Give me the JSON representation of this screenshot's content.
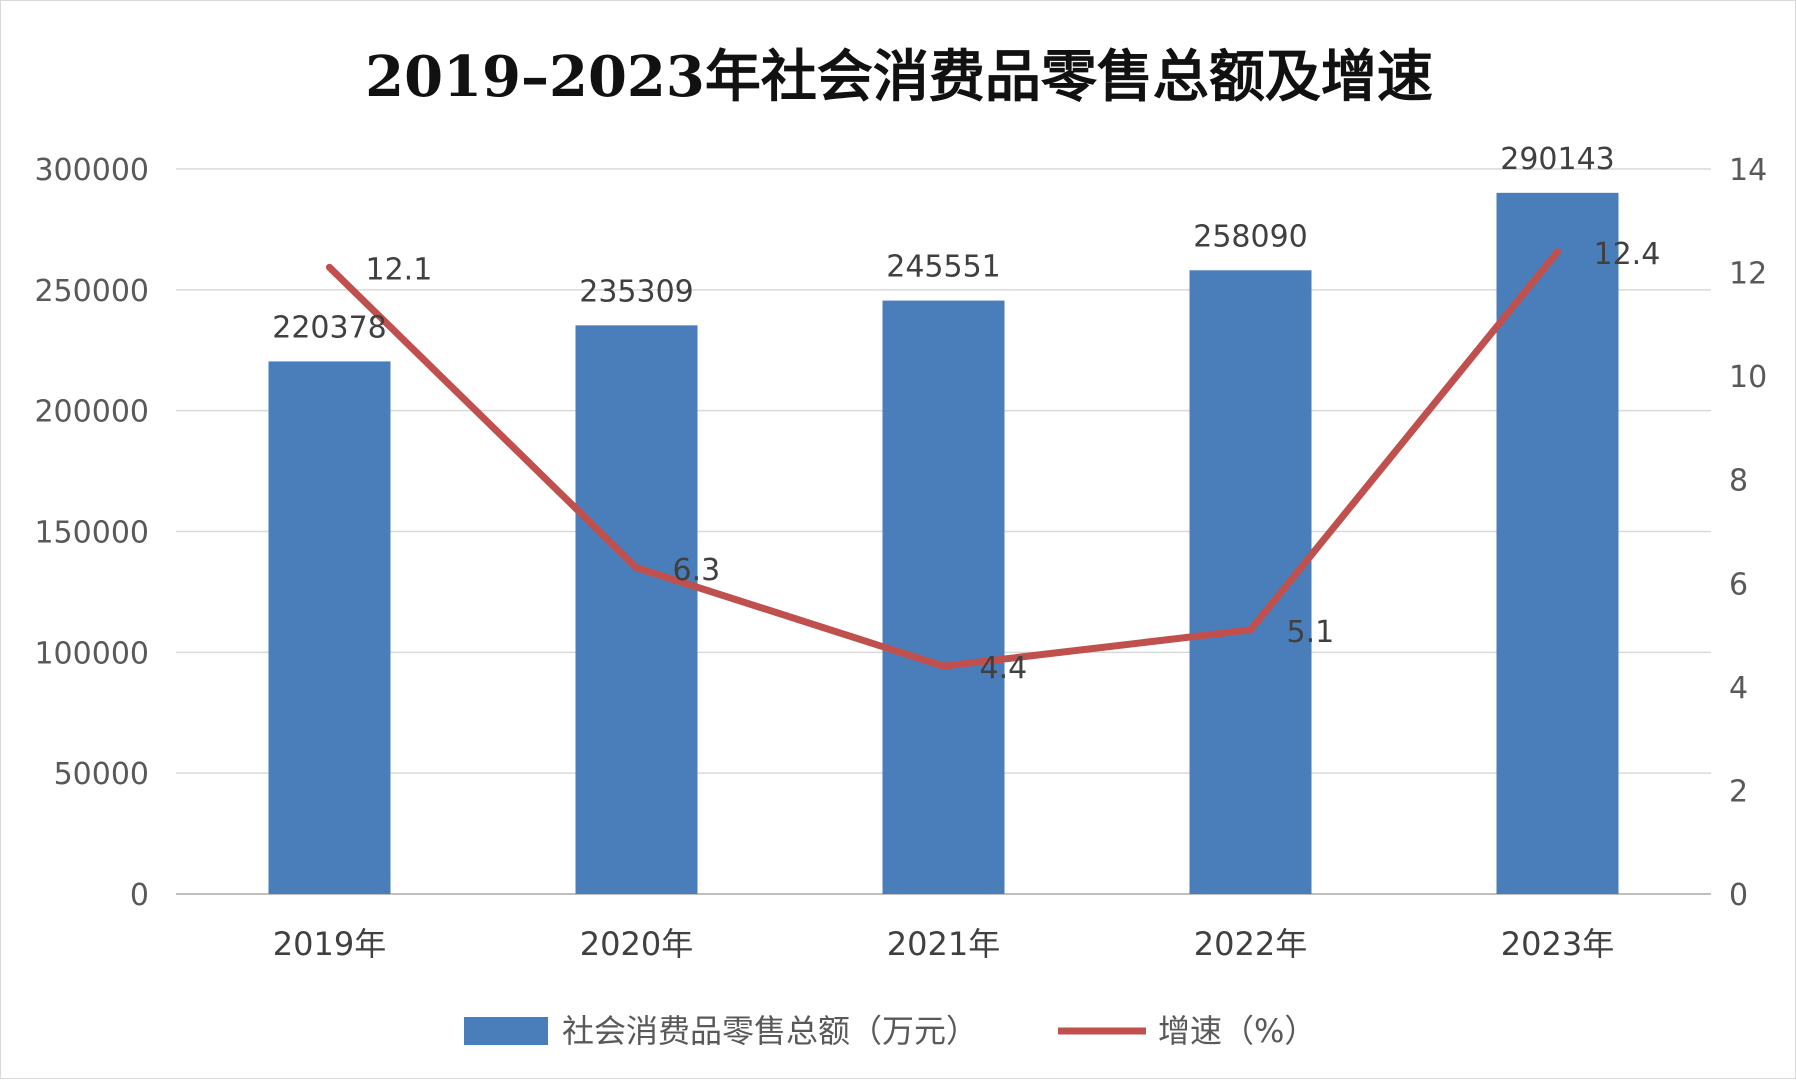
{
  "chart_data": {
    "type": "bar",
    "title": "2019–2023年社会消费品零售总额及增速",
    "categories": [
      "2019年",
      "2020年",
      "2021年",
      "2022年",
      "2023年"
    ],
    "series": [
      {
        "name": "社会消费品零售总额（万元）",
        "type": "bar",
        "axis": "left",
        "color": "#4a7ebb",
        "values": [
          220378,
          235309,
          245551,
          258090,
          290143
        ]
      },
      {
        "name": "增速（%）",
        "type": "line",
        "axis": "right",
        "color": "#c0504d",
        "values": [
          12.1,
          6.3,
          4.4,
          5.1,
          12.4
        ]
      }
    ],
    "y_left": {
      "min": 0,
      "max": 300000,
      "ticks": [
        "0",
        "50000",
        "100000",
        "150000",
        "200000",
        "250000",
        "300000"
      ]
    },
    "y_right": {
      "min": 0,
      "max": 14,
      "ticks": [
        "0",
        "2",
        "4",
        "6",
        "8",
        "10",
        "12",
        "14"
      ]
    },
    "bar_labels": [
      "220378",
      "235309",
      "245551",
      "258090",
      "290143"
    ],
    "line_labels": [
      "12.1",
      "6.3",
      "4.4",
      "5.1",
      "12.4"
    ],
    "grid": true,
    "legend_position": "bottom"
  }
}
